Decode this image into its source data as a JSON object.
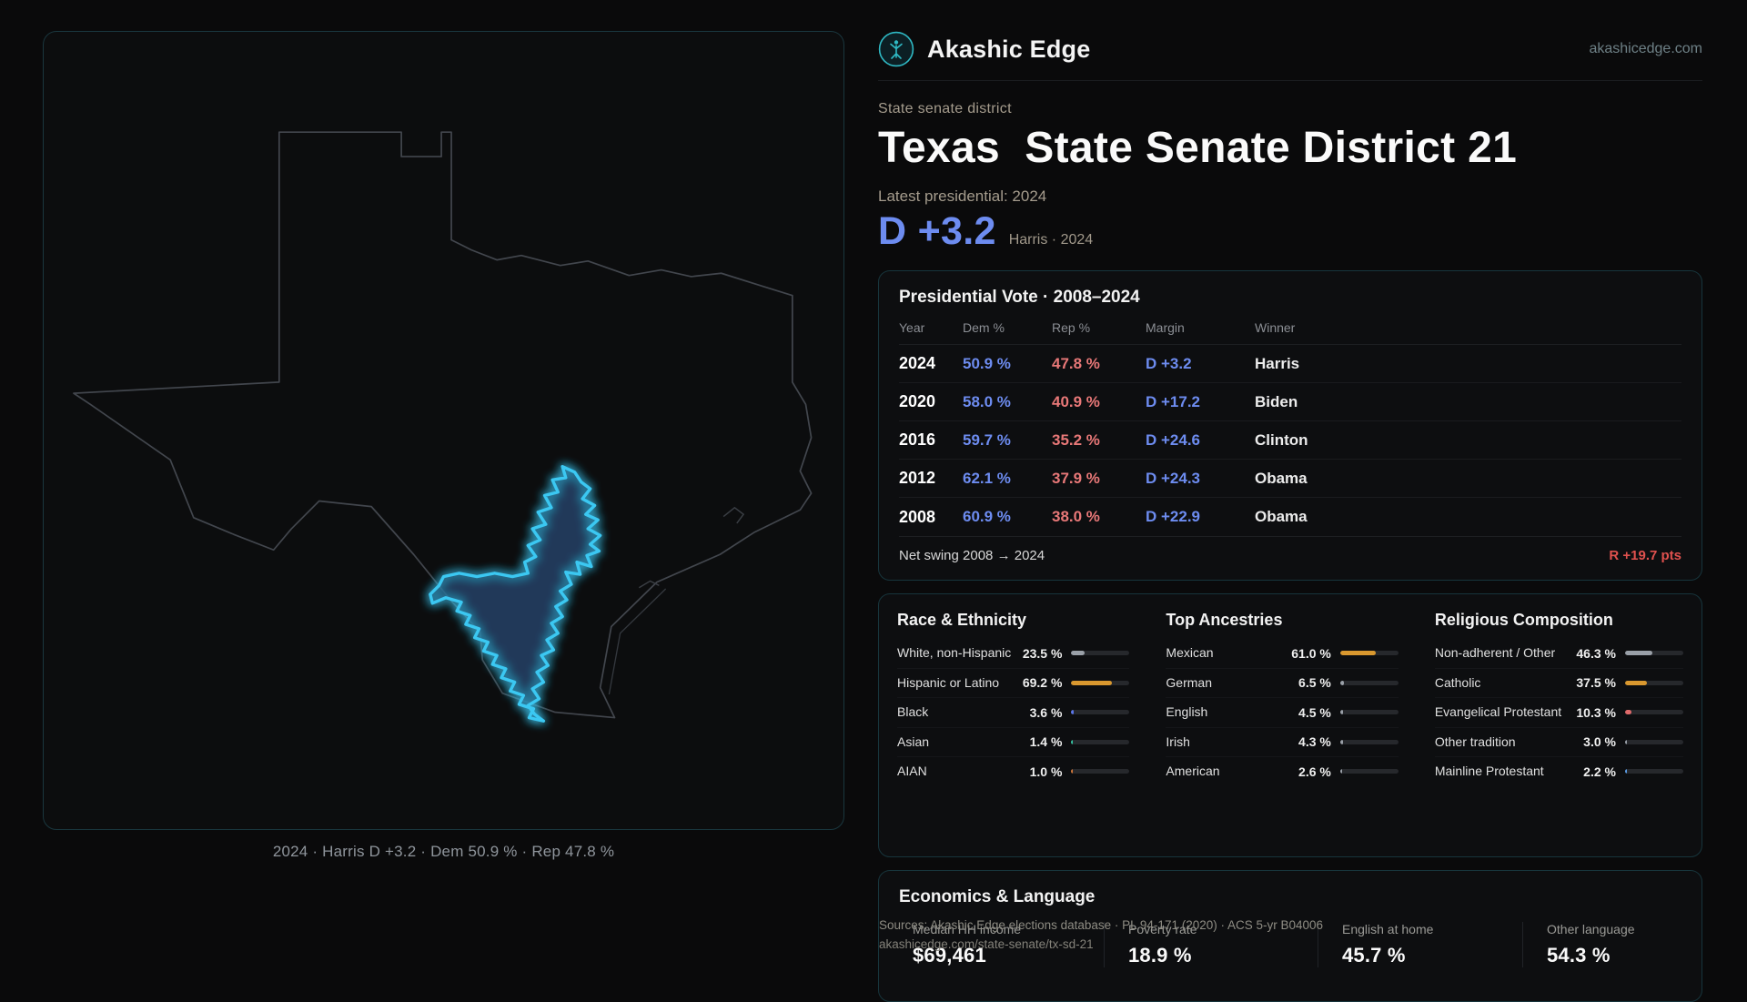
{
  "brand": {
    "name": "Akashic Edge",
    "site": "akashicedge.com"
  },
  "header": {
    "kicker": "State senate district",
    "title": "Texas  State Senate District 21",
    "latest_label": "Latest presidential: 2024",
    "margin": "D +3.2",
    "margin_note": "Harris · 2024"
  },
  "map": {
    "caption": "2024 · Harris D +3.2 · Dem 50.9 % · Rep 47.8 %"
  },
  "presidential": {
    "title": "Presidential Vote · 2008–2024",
    "columns": [
      "Year",
      "Dem %",
      "Rep %",
      "Margin",
      "Winner"
    ],
    "rows": [
      {
        "year": "2024",
        "dem": "50.9 %",
        "rep": "47.8 %",
        "margin": "D +3.2",
        "winner": "Harris"
      },
      {
        "year": "2020",
        "dem": "58.0 %",
        "rep": "40.9 %",
        "margin": "D +17.2",
        "winner": "Biden"
      },
      {
        "year": "2016",
        "dem": "59.7 %",
        "rep": "35.2 %",
        "margin": "D +24.6",
        "winner": "Clinton"
      },
      {
        "year": "2012",
        "dem": "62.1 %",
        "rep": "37.9 %",
        "margin": "D +24.3",
        "winner": "Obama"
      },
      {
        "year": "2008",
        "dem": "60.9 %",
        "rep": "38.0 %",
        "margin": "D +22.9",
        "winner": "Obama"
      }
    ],
    "net_swing_label": "Net swing 2008 → 2024",
    "net_swing_value": "R +19.7 pts"
  },
  "demographics": [
    {
      "title": "Race & Ethnicity",
      "items": [
        {
          "label": "White, non-Hispanic",
          "value": "23.5 %",
          "pct": 23.5,
          "color": "#9aa0a8"
        },
        {
          "label": "Hispanic or Latino",
          "value": "69.2 %",
          "pct": 69.2,
          "color": "#d9982f"
        },
        {
          "label": "Black",
          "value": "3.6 %",
          "pct": 3.6,
          "color": "#5b76e8"
        },
        {
          "label": "Asian",
          "value": "1.4 %",
          "pct": 1.4,
          "color": "#35c2a0"
        },
        {
          "label": "AIAN",
          "value": "1.0 %",
          "pct": 1.0,
          "color": "#d0763a"
        }
      ]
    },
    {
      "title": "Top Ancestries",
      "items": [
        {
          "label": "Mexican",
          "value": "61.0 %",
          "pct": 61.0,
          "color": "#d9982f"
        },
        {
          "label": "German",
          "value": "6.5 %",
          "pct": 6.5,
          "color": "#9aa0a8"
        },
        {
          "label": "English",
          "value": "4.5 %",
          "pct": 4.5,
          "color": "#9aa0a8"
        },
        {
          "label": "Irish",
          "value": "4.3 %",
          "pct": 4.3,
          "color": "#9aa0a8"
        },
        {
          "label": "American",
          "value": "2.6 %",
          "pct": 2.6,
          "color": "#9aa0a8"
        }
      ]
    },
    {
      "title": "Religious Composition",
      "items": [
        {
          "label": "Non-adherent / Other",
          "value": "46.3 %",
          "pct": 46.3,
          "color": "#9aa0a8"
        },
        {
          "label": "Catholic",
          "value": "37.5 %",
          "pct": 37.5,
          "color": "#d9982f"
        },
        {
          "label": "Evangelical Protestant",
          "value": "10.3 %",
          "pct": 10.3,
          "color": "#e06a6a"
        },
        {
          "label": "Other tradition",
          "value": "3.0 %",
          "pct": 3.0,
          "color": "#9aa0a8"
        },
        {
          "label": "Mainline Protestant",
          "value": "2.2 %",
          "pct": 2.2,
          "color": "#5b9de8"
        }
      ]
    }
  ],
  "economics": {
    "title": "Economics & Language",
    "stats": [
      {
        "label": "Median HH income",
        "value": "$69,461"
      },
      {
        "label": "Poverty rate",
        "value": "18.9 %"
      },
      {
        "label": "English at home",
        "value": "45.7 %"
      },
      {
        "label": "Other language",
        "value": "54.3 %"
      }
    ]
  },
  "footer": {
    "sources": "Sources: Akashic Edge elections database · PL 94-171 (2020) · ACS 5-yr B04006",
    "permalink": "akashicedge.com/state-senate/tx-sd-21"
  },
  "colors": {
    "dem_blue": "#6d8cf0",
    "rep_red": "#e87878",
    "swing_red": "#e0514e",
    "district_cyan": "#3bc8f2",
    "bar_amber": "#d9982f"
  }
}
